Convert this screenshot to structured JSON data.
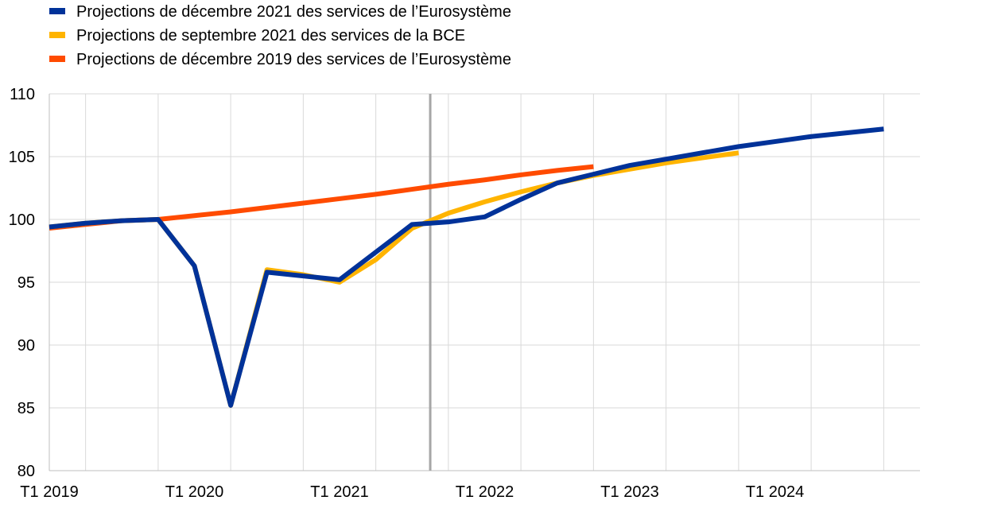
{
  "colors": {
    "grid": "#d9d9d9",
    "axis": "#bfbfbf",
    "cutoff_line": "#a6a6a6"
  },
  "chart_data": {
    "type": "line",
    "title": "",
    "xlabel": "",
    "ylabel": "",
    "ylim": [
      80,
      110
    ],
    "yticks": [
      80,
      85,
      90,
      95,
      100,
      105,
      110
    ],
    "grid": true,
    "legend_position": "top-left",
    "x_period_count": 24,
    "x_tick_labels": [
      {
        "index": 0,
        "label": "T1 2019"
      },
      {
        "index": 4,
        "label": "T1 2020"
      },
      {
        "index": 8,
        "label": "T1 2021"
      },
      {
        "index": 12,
        "label": "T1 2022"
      },
      {
        "index": 16,
        "label": "T1 2023"
      },
      {
        "index": 20,
        "label": "T1 2024"
      }
    ],
    "projection_cutoff_index": 10.5,
    "series": [
      {
        "name": "Projections de décembre 2019 des services de l’Eurosystème",
        "color": "#ff4b00",
        "start_index": 0,
        "values": [
          99.3,
          99.6,
          99.9,
          100.0,
          100.3,
          100.6,
          100.95,
          101.3,
          101.65,
          102.0,
          102.4,
          102.8,
          103.15,
          103.55,
          103.9,
          104.2
        ]
      },
      {
        "name": "Projections de septembre 2021 des services de la BCE",
        "color": "#ffb400",
        "start_index": 0,
        "values": [
          99.4,
          99.7,
          99.9,
          100.0,
          96.3,
          85.2,
          96.0,
          95.6,
          95.0,
          96.8,
          99.3,
          100.5,
          101.4,
          102.2,
          102.9,
          103.5,
          104.0,
          104.5,
          104.9,
          105.3
        ]
      },
      {
        "name": "Projections de décembre 2021 des services de l’Eurosystème",
        "color": "#003299",
        "start_index": 0,
        "values": [
          99.4,
          99.7,
          99.9,
          100.0,
          96.3,
          85.2,
          95.8,
          95.5,
          95.2,
          97.4,
          99.6,
          99.8,
          100.2,
          101.6,
          102.9,
          103.6,
          104.3,
          104.8,
          105.3,
          105.8,
          106.2,
          106.6,
          106.9,
          107.2
        ]
      }
    ],
    "legend": [
      {
        "label": "Projections de décembre 2021 des services de l’Eurosystème",
        "color": "#003299"
      },
      {
        "label": "Projections de septembre 2021 des services de la BCE",
        "color": "#ffb400"
      },
      {
        "label": "Projections de décembre 2019 des services de l’Eurosystème",
        "color": "#ff4b00"
      }
    ]
  }
}
